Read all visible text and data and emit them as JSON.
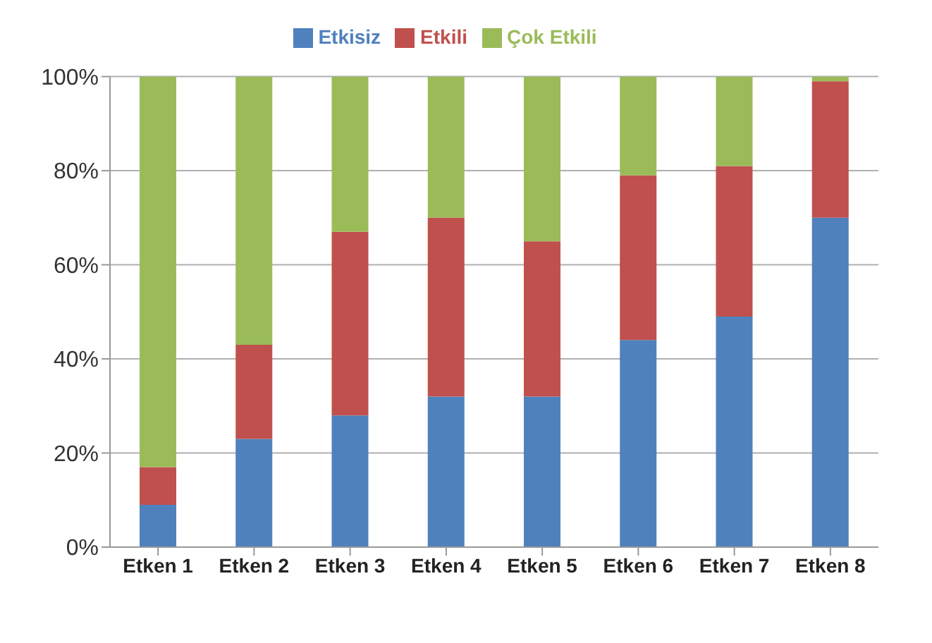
{
  "chart_data": {
    "type": "bar",
    "stacked": true,
    "categories": [
      "Etken 1",
      "Etken 2",
      "Etken 3",
      "Etken 4",
      "Etken 5",
      "Etken 6",
      "Etken 7",
      "Etken 8"
    ],
    "series": [
      {
        "name": "Etkisiz",
        "color": "#4f81bd",
        "values": [
          9,
          23,
          28,
          32,
          32,
          44,
          49,
          70
        ]
      },
      {
        "name": "Etkili",
        "color": "#c0504d",
        "values": [
          8,
          20,
          39,
          38,
          33,
          35,
          32,
          29
        ]
      },
      {
        "name": "Çok Etkili",
        "color": "#9bbb59",
        "values": [
          83,
          57,
          33,
          30,
          35,
          21,
          19,
          1
        ]
      }
    ],
    "ylim": [
      0,
      100
    ],
    "yticks": [
      {
        "value": 0,
        "label": "0%"
      },
      {
        "value": 20,
        "label": "20%"
      },
      {
        "value": 40,
        "label": "40%"
      },
      {
        "value": 60,
        "label": "60%"
      },
      {
        "value": 80,
        "label": "80%"
      },
      {
        "value": 100,
        "label": "100%"
      }
    ],
    "grid": "y",
    "legend": "top"
  }
}
